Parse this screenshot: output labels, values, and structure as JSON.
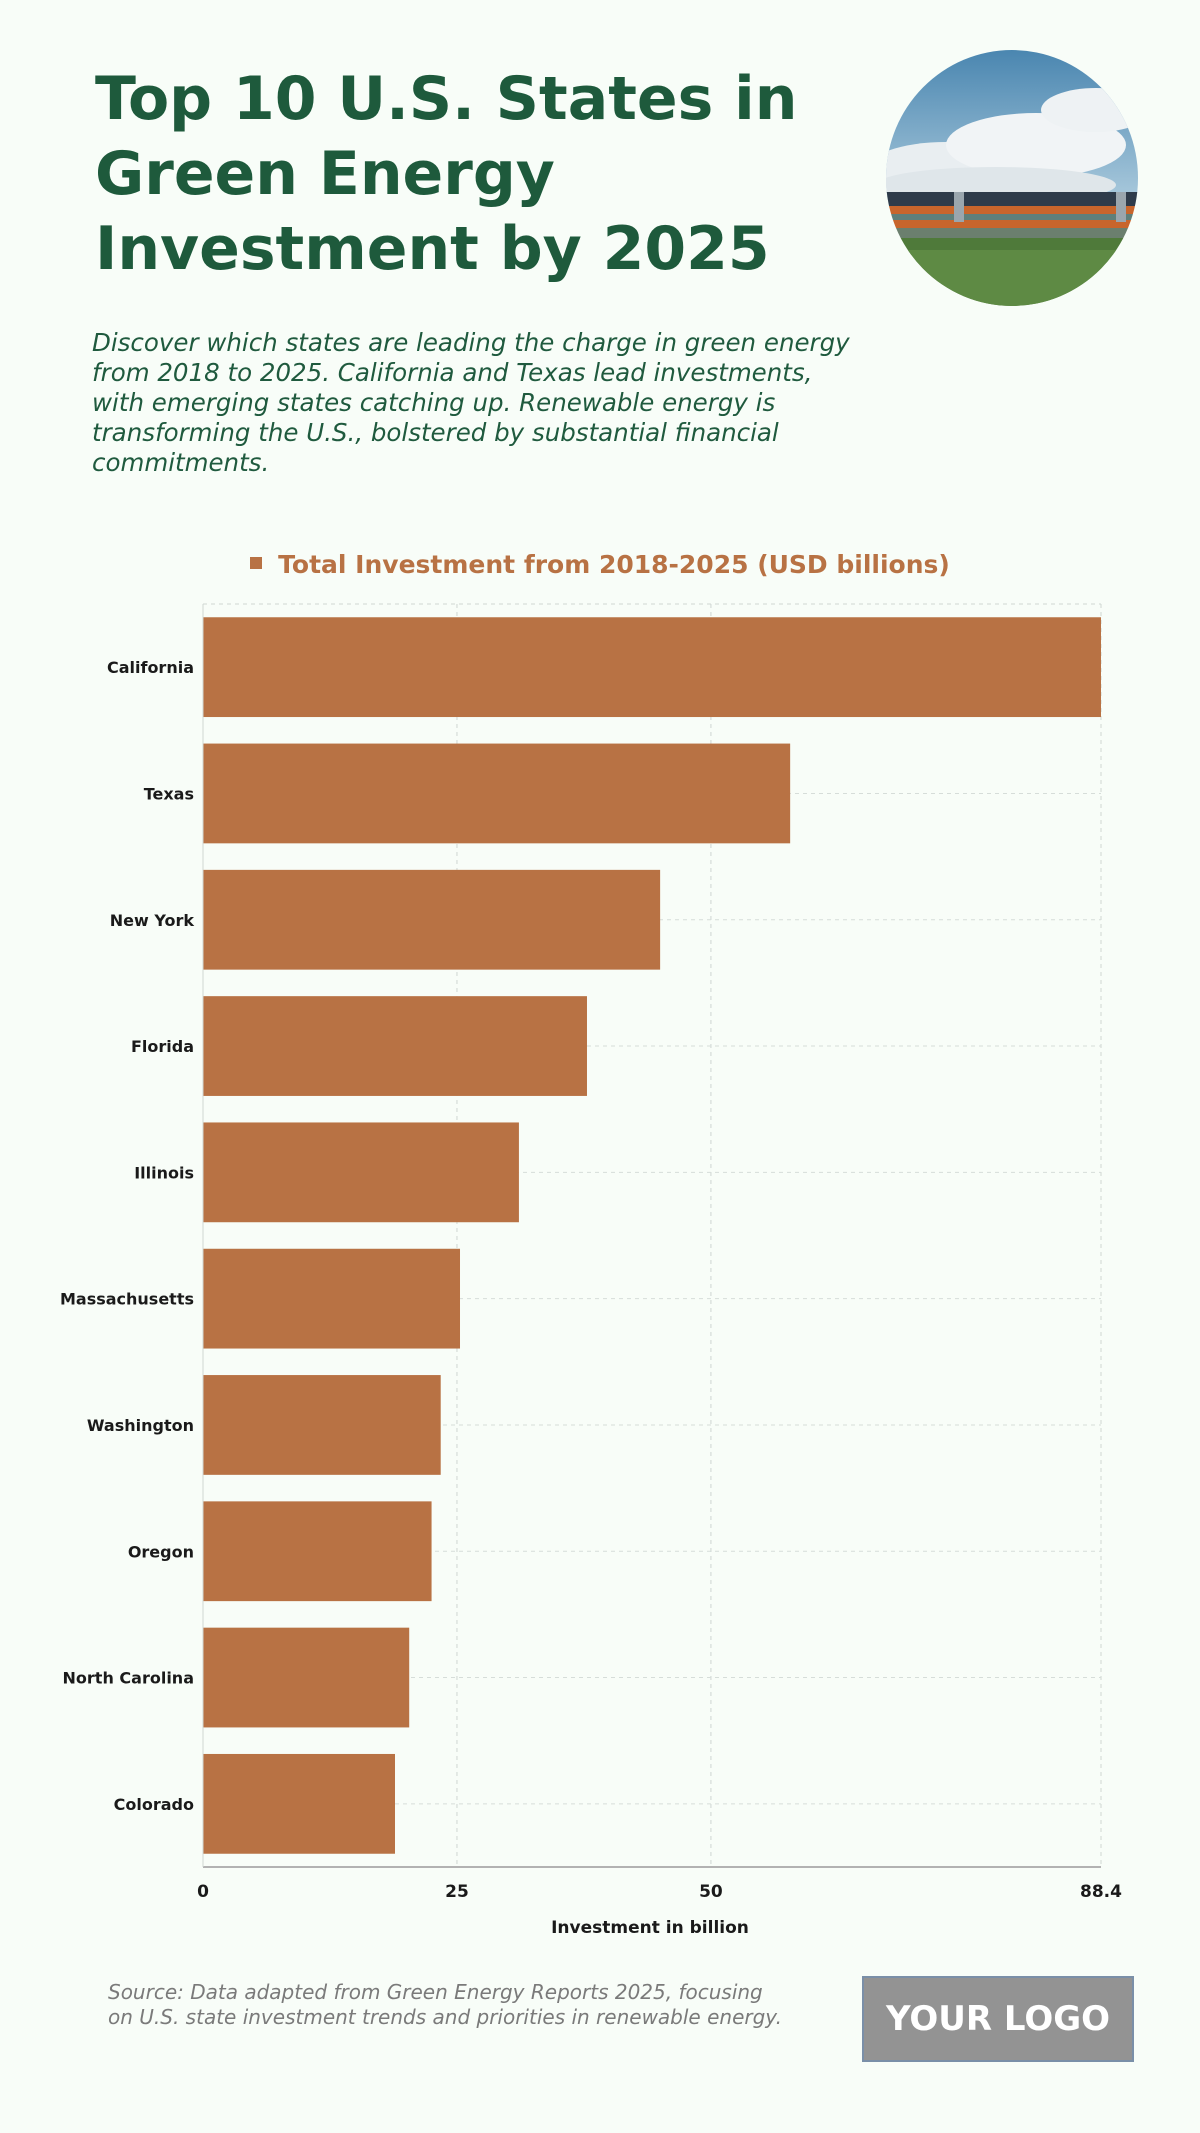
{
  "header": {
    "title": "Top 10 U.S. States in Green Energy Investment by 2025",
    "subtitle": "Discover which states are leading the charge in green energy from 2018 to 2025. California and Texas lead investments, with emerging states catching up. Renewable energy is transforming the U.S., bolstered by substantial financial commitments."
  },
  "footer": {
    "source": "Source: Data adapted from Green Energy Reports 2025, focusing on U.S. state investment trends and priorities in renewable energy.",
    "logo_text": "YOUR LOGO"
  },
  "colors": {
    "bar": "#b87244",
    "title": "#1e5a3c",
    "background": "#f8fdf8"
  },
  "chart_data": {
    "type": "bar",
    "orientation": "horizontal",
    "title": "",
    "legend": {
      "label": "Total Investment from 2018-2025 (USD billions)",
      "placement": "top-center"
    },
    "categories": [
      "California",
      "Texas",
      "New York",
      "Florida",
      "Illinois",
      "Massachusetts",
      "Washington",
      "Oregon",
      "North Carolina",
      "Colorado"
    ],
    "series": [
      {
        "name": "Total Investment from 2018-2025 (USD billions)",
        "values": [
          88.4,
          57.8,
          45.0,
          37.8,
          31.1,
          25.3,
          23.4,
          22.5,
          20.3,
          18.9
        ]
      }
    ],
    "xlabel": "Investment in billion",
    "ylabel": "",
    "xlim": [
      0,
      88.4
    ],
    "xticks": [
      {
        "value": 0,
        "label": "0"
      },
      {
        "value": 25,
        "label": "25"
      },
      {
        "value": 50,
        "label": "50"
      },
      {
        "value": 88.4,
        "label": "88.4"
      }
    ],
    "grid": true
  }
}
